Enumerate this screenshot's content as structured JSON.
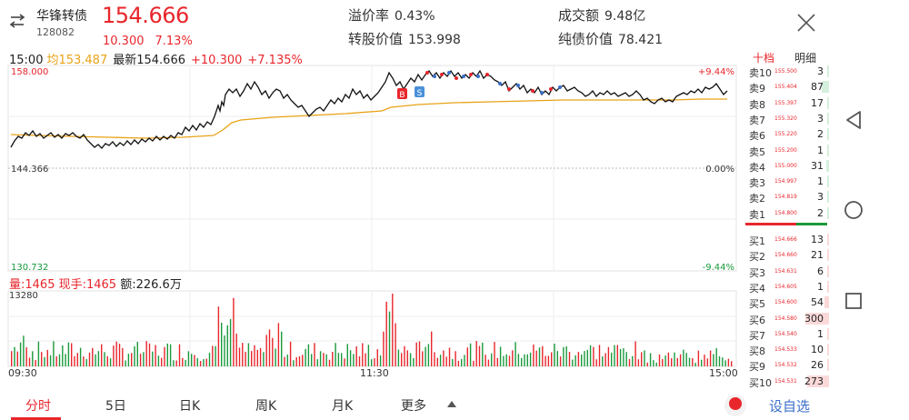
{
  "header": {
    "name": "华锋转债",
    "code": "128082",
    "price": "154.666",
    "change_abs": "10.300",
    "change_pct": "7.13%",
    "premium_label": "溢价率",
    "premium_value": "0.43%",
    "conversion_label": "转股价值",
    "conversion_value": "153.998",
    "turnover_label": "成交额",
    "turnover_value": "9.48亿",
    "bond_value_label": "纯债价值",
    "bond_value_value": "78.421"
  },
  "sub_header": {
    "time": "15:00",
    "avg_text": "均153.487",
    "latest_label": "最新154.666",
    "change_abs": "+10.300",
    "change_pct": "+7.135%"
  },
  "chart_axes": {
    "y_top": "158.000",
    "y_mid": "144.366",
    "y_bottom": "130.732",
    "pct_top": "+9.44%",
    "pct_mid": "0.00%",
    "pct_bottom": "-9.44%",
    "marker_buy": "B",
    "marker_sell": "S"
  },
  "volume": {
    "vol_label": "量:1465",
    "current_label": "现手:1465",
    "amount_label": "额:226.6万",
    "max": "13280"
  },
  "time_axis": [
    "09:30",
    "11:30",
    "15:00"
  ],
  "order_book": {
    "tab_active": "十档",
    "tab_other": "明细",
    "sell": [
      {
        "label": "卖10",
        "price": "155.500",
        "qty": "3"
      },
      {
        "label": "卖9",
        "price": "155.404",
        "qty": "87"
      },
      {
        "label": "卖8",
        "price": "155.397",
        "qty": "17"
      },
      {
        "label": "卖7",
        "price": "155.320",
        "qty": "3"
      },
      {
        "label": "卖6",
        "price": "155.220",
        "qty": "2"
      },
      {
        "label": "卖5",
        "price": "155.200",
        "qty": "1"
      },
      {
        "label": "卖4",
        "price": "155.000",
        "qty": "31"
      },
      {
        "label": "卖3",
        "price": "154.997",
        "qty": "1"
      },
      {
        "label": "卖2",
        "price": "154.819",
        "qty": "3"
      },
      {
        "label": "卖1",
        "price": "154.800",
        "qty": "2"
      }
    ],
    "buy": [
      {
        "label": "买1",
        "price": "154.666",
        "qty": "13"
      },
      {
        "label": "买2",
        "price": "154.660",
        "qty": "21"
      },
      {
        "label": "买3",
        "price": "154.631",
        "qty": "6"
      },
      {
        "label": "买4",
        "price": "154.605",
        "qty": "1"
      },
      {
        "label": "买5",
        "price": "154.600",
        "qty": "54"
      },
      {
        "label": "买6",
        "price": "154.580",
        "qty": "300"
      },
      {
        "label": "买7",
        "price": "154.540",
        "qty": "1"
      },
      {
        "label": "买8",
        "price": "154.533",
        "qty": "10"
      },
      {
        "label": "买9",
        "price": "154.532",
        "qty": "26"
      },
      {
        "label": "买10",
        "price": "154.531",
        "qty": "273"
      }
    ]
  },
  "bottom_tabs": [
    "分时",
    "5日",
    "日K",
    "周K",
    "月K",
    "更多"
  ],
  "fav_label": "设自选",
  "colors": {
    "up": "#e8262c",
    "down": "#1a9a3c",
    "avg": "#e8a317",
    "link": "#3a6fc8"
  }
}
